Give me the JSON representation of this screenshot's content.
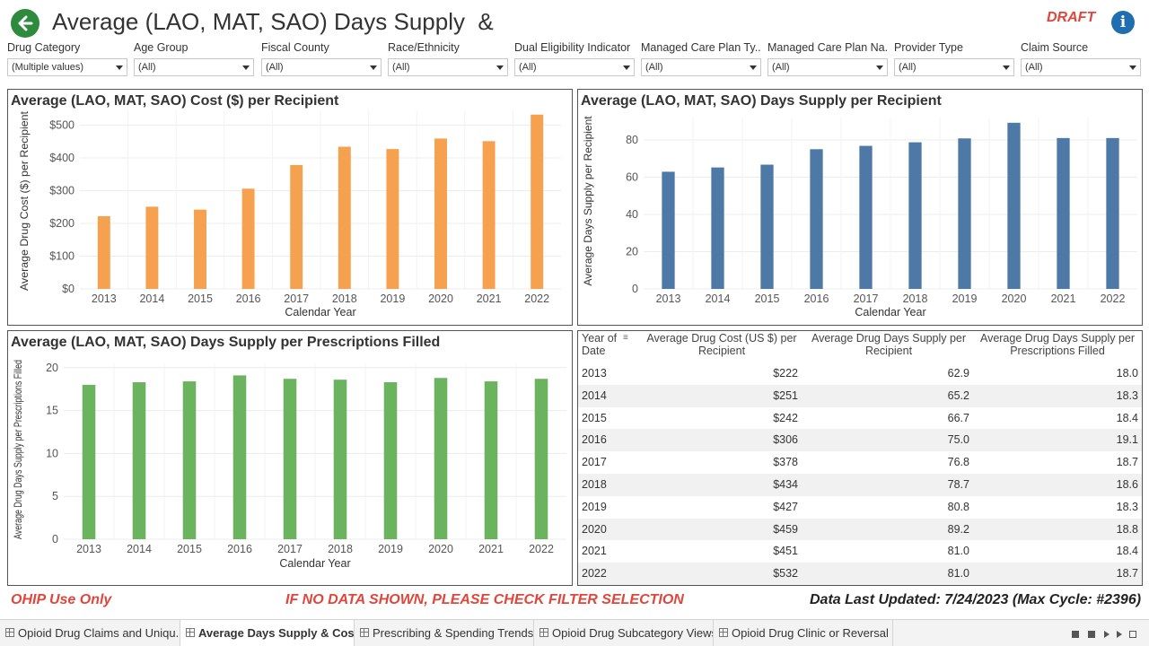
{
  "header": {
    "title": "Average (LAO, MAT, SAO) Days Supply  &",
    "draft_label": "DRAFT",
    "info_glyph": "i"
  },
  "filters": [
    {
      "label": "Drug Category",
      "value": "(Multiple values)"
    },
    {
      "label": "Age Group",
      "value": "(All)"
    },
    {
      "label": "Fiscal County",
      "value": "(All)"
    },
    {
      "label": "Race/Ethnicity",
      "value": "(All)"
    },
    {
      "label": "Dual Eligibility Indicator",
      "value": "(All)"
    },
    {
      "label": "Managed Care Plan Ty..",
      "value": "(All)"
    },
    {
      "label": "Managed Care Plan Na..",
      "value": "(All)"
    },
    {
      "label": "Provider Type",
      "value": "(All)"
    },
    {
      "label": "Claim Source",
      "value": "(All)"
    }
  ],
  "chart_data": [
    {
      "type": "bar",
      "title": "Average (LAO, MAT, SAO) Cost ($) per Recipient",
      "xlabel": "Calendar Year",
      "ylabel": "Average Drug Cost ($) per Recipient",
      "categories": [
        "2013",
        "2014",
        "2015",
        "2016",
        "2017",
        "2018",
        "2019",
        "2020",
        "2021",
        "2022"
      ],
      "values": [
        222,
        251,
        242,
        306,
        378,
        434,
        427,
        459,
        451,
        532
      ],
      "yticks": [
        0,
        100,
        200,
        300,
        400,
        500
      ],
      "ytick_labels": [
        "$0",
        "$100",
        "$200",
        "$300",
        "$400",
        "$500"
      ],
      "ylim": [
        0,
        545
      ],
      "color": "#f5a14f",
      "grid": true
    },
    {
      "type": "bar",
      "title": "Average (LAO, MAT, SAO) Days Supply per Recipient",
      "xlabel": "Calendar Year",
      "ylabel": "Average Days Supply per Recipient",
      "categories": [
        "2013",
        "2014",
        "2015",
        "2016",
        "2017",
        "2018",
        "2019",
        "2020",
        "2021",
        "2022"
      ],
      "values": [
        62.9,
        65.2,
        66.7,
        75.0,
        76.8,
        78.7,
        80.8,
        89.2,
        81.0,
        81.0
      ],
      "yticks": [
        0,
        20,
        40,
        60,
        80
      ],
      "ytick_labels": [
        "0",
        "20",
        "40",
        "60",
        "80"
      ],
      "ylim": [
        0,
        92
      ],
      "color": "#4e79a7",
      "grid": true
    },
    {
      "type": "bar",
      "title": "Average (LAO, MAT, SAO) Days Supply per Prescriptions Filled",
      "xlabel": "Calendar Year",
      "ylabel": "Average Drug Days Supply per Prescriptions Filled",
      "categories": [
        "2013",
        "2014",
        "2015",
        "2016",
        "2017",
        "2018",
        "2019",
        "2020",
        "2021",
        "2022"
      ],
      "values": [
        18.0,
        18.3,
        18.4,
        19.1,
        18.7,
        18.6,
        18.3,
        18.8,
        18.4,
        18.7
      ],
      "yticks": [
        0,
        5,
        10,
        15,
        20
      ],
      "ytick_labels": [
        "0",
        "5",
        "10",
        "15",
        "20"
      ],
      "ylim": [
        0,
        20.5
      ],
      "color": "#6bb35e",
      "grid": true
    },
    {
      "type": "table",
      "columns": [
        "Year of Date",
        "Average Drug Cost (US $) per Recipient",
        "Average Drug Days Supply per Recipient",
        "Average Drug Days Supply per Prescriptions Filled"
      ],
      "rows": [
        [
          "2013",
          "$222",
          "62.9",
          "18.0"
        ],
        [
          "2014",
          "$251",
          "65.2",
          "18.3"
        ],
        [
          "2015",
          "$242",
          "66.7",
          "18.4"
        ],
        [
          "2016",
          "$306",
          "75.0",
          "19.1"
        ],
        [
          "2017",
          "$378",
          "76.8",
          "18.7"
        ],
        [
          "2018",
          "$434",
          "78.7",
          "18.6"
        ],
        [
          "2019",
          "$427",
          "80.8",
          "18.3"
        ],
        [
          "2020",
          "$459",
          "89.2",
          "18.8"
        ],
        [
          "2021",
          "$451",
          "81.0",
          "18.4"
        ],
        [
          "2022",
          "$532",
          "81.0",
          "18.7"
        ]
      ]
    }
  ],
  "footer": {
    "left": "OHIP Use Only",
    "center": "IF NO DATA SHOWN, PLEASE CHECK FILTER SELECTION",
    "right": "Data Last Updated: 7/24/2023 (Max Cycle: #2396)",
    "accent_color": "#e0463c"
  },
  "tabs": [
    {
      "label": "Opioid Drug Claims and Uniqu...",
      "active": false
    },
    {
      "label": "Average Days Supply & Costs",
      "active": true
    },
    {
      "label": "Prescribing & Spending Trends",
      "active": false
    },
    {
      "label": "Opioid Drug Subcategory Views",
      "active": false
    },
    {
      "label": "Opioid Drug Clinic or Reversal",
      "active": false
    }
  ]
}
